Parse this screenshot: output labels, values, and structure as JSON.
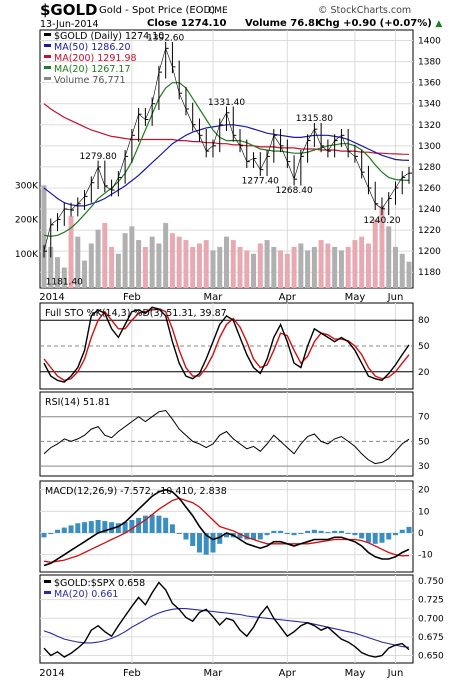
{
  "header": {
    "symbol": "$GOLD",
    "description": "Gold - Spot Price (EOD)",
    "exchange": "CME",
    "credit": "© StockCharts.com",
    "date": "13-Jun-2014",
    "close": "Close 1274.10",
    "volume": "Volume 76.8K",
    "change": "Chg +0.90 (+0.07%)",
    "change_arrow": "▲"
  },
  "colors": {
    "price_up": "#000000",
    "ma50": "#1a1aa6",
    "ma200": "#c8102e",
    "ma20": "#1e7d1e",
    "volume_up": "#b0b0b0",
    "volume_down": "#e7aab3",
    "k_line": "#000000",
    "d_line": "#d01010",
    "macd_hist": "#3b8fc0",
    "ratio_ma": "#2a2aa0"
  },
  "chart_data": [
    {
      "panel": "price",
      "type": "line",
      "title": "$GOLD (Daily) 1274.10",
      "x_tick_labels": [
        "2014",
        "Feb",
        "Mar",
        "Apr",
        "May",
        "Jun"
      ],
      "y_ticks": [
        1180,
        1200,
        1220,
        1240,
        1260,
        1280,
        1300,
        1320,
        1340,
        1360,
        1380,
        1400
      ],
      "ylim": [
        1165,
        1410
      ],
      "volume_ticks": [
        "300K",
        "200K",
        "100K"
      ],
      "grid": true,
      "legend": [
        {
          "key": "price",
          "label": "$GOLD (Daily) 1274.10"
        },
        {
          "key": "ma50",
          "label": "MA(50) 1286.20"
        },
        {
          "key": "ma200",
          "label": "MA(200) 1291.98"
        },
        {
          "key": "ma20",
          "label": "MA(20) 1267.17"
        },
        {
          "key": "volume",
          "label": "Volume 76,771"
        }
      ],
      "annotations": [
        {
          "label": "1181.40",
          "value": 1181.4
        },
        {
          "label": "1279.80",
          "value": 1279.8
        },
        {
          "label": "1392.60",
          "value": 1392.6
        },
        {
          "label": "1331.40",
          "value": 1331.4
        },
        {
          "label": "1277.40",
          "value": 1277.4
        },
        {
          "label": "1268.40",
          "value": 1268.4
        },
        {
          "label": "1315.80",
          "value": 1315.8
        },
        {
          "label": "1240.20",
          "value": 1240.2
        }
      ],
      "series": [
        {
          "name": "$GOLD (Daily)",
          "key": "price",
          "values": [
            1200,
            1225,
            1230,
            1240,
            1239,
            1245,
            1252,
            1265,
            1280,
            1262,
            1258,
            1270,
            1290,
            1310,
            1330,
            1325,
            1340,
            1370,
            1392.6,
            1375,
            1350,
            1335,
            1320,
            1310,
            1295,
            1300,
            1320,
            1331.4,
            1310,
            1300,
            1285,
            1288,
            1277.4,
            1290,
            1310,
            1300,
            1285,
            1268.4,
            1290,
            1305,
            1315.8,
            1300,
            1295,
            1305,
            1310,
            1295,
            1290,
            1275,
            1260,
            1245,
            1240.2,
            1250,
            1260,
            1270,
            1274.1
          ]
        },
        {
          "name": "MA(50)",
          "key": "ma50",
          "values": [
            1260,
            1255,
            1250,
            1246,
            1244,
            1243,
            1243,
            1245,
            1247,
            1250,
            1254,
            1258,
            1262,
            1267,
            1272,
            1278,
            1284,
            1290,
            1296,
            1302,
            1306,
            1310,
            1313,
            1315,
            1317,
            1318,
            1319,
            1320,
            1320,
            1319,
            1318,
            1316,
            1314,
            1312,
            1311,
            1310,
            1309,
            1308,
            1308,
            1309,
            1310,
            1310,
            1310,
            1309,
            1308,
            1306,
            1303,
            1300,
            1297,
            1294,
            1291,
            1289,
            1287,
            1286.5,
            1286.2
          ]
        },
        {
          "name": "MA(200)",
          "key": "ma200",
          "values": [
            1340,
            1335,
            1331,
            1327,
            1324,
            1321,
            1318,
            1315,
            1313,
            1311,
            1309,
            1308,
            1307,
            1306,
            1306,
            1306,
            1306,
            1306,
            1306,
            1306,
            1305,
            1305,
            1304,
            1304,
            1303,
            1303,
            1302,
            1302,
            1301,
            1301,
            1300,
            1300,
            1299,
            1299,
            1299,
            1298,
            1298,
            1298,
            1297,
            1297,
            1297,
            1296,
            1296,
            1296,
            1295,
            1295,
            1295,
            1294,
            1294,
            1293,
            1293,
            1292.5,
            1292.3,
            1292.1,
            1291.98
          ]
        },
        {
          "name": "MA(20)",
          "key": "ma20",
          "values": [
            1215,
            1214,
            1215,
            1218,
            1222,
            1228,
            1235,
            1242,
            1250,
            1255,
            1260,
            1266,
            1274,
            1285,
            1300,
            1315,
            1330,
            1345,
            1355,
            1360,
            1360,
            1355,
            1345,
            1335,
            1325,
            1315,
            1308,
            1305,
            1305,
            1305,
            1303,
            1300,
            1297,
            1296,
            1295,
            1295,
            1294,
            1293,
            1293,
            1294,
            1296,
            1298,
            1300,
            1301,
            1302,
            1302,
            1300,
            1296,
            1290,
            1282,
            1275,
            1270,
            1268,
            1267.5,
            1267.17
          ]
        },
        {
          "name": "Volume",
          "key": "volume",
          "values": [
            300,
            120,
            90,
            60,
            210,
            150,
            80,
            130,
            170,
            190,
            120,
            100,
            160,
            180,
            140,
            120,
            150,
            130,
            190,
            160,
            150,
            140,
            120,
            130,
            140,
            110,
            120,
            150,
            140,
            120,
            110,
            100,
            130,
            140,
            120,
            110,
            100,
            120,
            130,
            110,
            120,
            140,
            130,
            120,
            110,
            120,
            140,
            150,
            130,
            200,
            240,
            180,
            120,
            100,
            76.8
          ]
        }
      ]
    },
    {
      "panel": "stochastic",
      "type": "line",
      "title": "Full STO %K(14,3) %D(3) 51.31, 39.87",
      "y_ticks": [
        20,
        50,
        80
      ],
      "ylim": [
        0,
        100
      ],
      "series": [
        {
          "name": "%K",
          "key": "k_line",
          "values": [
            30,
            15,
            10,
            8,
            15,
            25,
            45,
            85,
            92,
            88,
            70,
            60,
            75,
            90,
            92,
            88,
            95,
            93,
            85,
            55,
            30,
            15,
            12,
            18,
            35,
            55,
            75,
            85,
            80,
            60,
            40,
            25,
            18,
            35,
            60,
            75,
            55,
            30,
            25,
            50,
            70,
            65,
            60,
            55,
            60,
            55,
            45,
            30,
            15,
            12,
            10,
            18,
            28,
            40,
            51.31
          ]
        },
        {
          "name": "%D",
          "key": "d_line",
          "values": [
            35,
            25,
            15,
            10,
            12,
            20,
            35,
            60,
            80,
            90,
            80,
            70,
            70,
            80,
            88,
            90,
            92,
            93,
            90,
            70,
            45,
            25,
            15,
            15,
            25,
            40,
            60,
            75,
            82,
            72,
            55,
            35,
            25,
            28,
            45,
            65,
            62,
            45,
            30,
            38,
            55,
            65,
            63,
            58,
            58,
            56,
            50,
            40,
            25,
            15,
            12,
            14,
            20,
            30,
            39.87
          ]
        }
      ]
    },
    {
      "panel": "rsi",
      "type": "line",
      "title": "RSI(14) 51.81",
      "y_ticks": [
        30,
        50,
        70
      ],
      "ylim": [
        22,
        90
      ],
      "series": [
        {
          "name": "RSI(14)",
          "key": "rsi",
          "values": [
            40,
            45,
            48,
            52,
            50,
            52,
            55,
            60,
            62,
            55,
            53,
            58,
            62,
            66,
            70,
            66,
            70,
            74,
            75,
            68,
            60,
            55,
            50,
            48,
            45,
            48,
            55,
            58,
            52,
            48,
            44,
            46,
            42,
            48,
            55,
            50,
            45,
            40,
            48,
            54,
            56,
            50,
            48,
            52,
            54,
            50,
            46,
            40,
            35,
            32,
            33,
            36,
            42,
            48,
            51.81
          ]
        }
      ]
    },
    {
      "panel": "macd",
      "type": "line",
      "title": "MACD(12,26,9) -7.572, -10.410, 2.838",
      "y_ticks": [
        -10,
        0,
        10,
        20
      ],
      "ylim": [
        -18,
        24
      ],
      "series": [
        {
          "name": "MACD",
          "key": "macd",
          "values": [
            -15,
            -14,
            -12,
            -10,
            -8,
            -6,
            -4,
            -2,
            0,
            1,
            2,
            3,
            5,
            8,
            11,
            14,
            17,
            19,
            20,
            19,
            16,
            12,
            8,
            3,
            -1,
            -3,
            -2,
            0,
            -1,
            -3,
            -5,
            -6,
            -7,
            -6,
            -4,
            -4,
            -5,
            -6,
            -5,
            -4,
            -3,
            -3,
            -3,
            -2,
            -2,
            -3,
            -4,
            -6,
            -9,
            -11,
            -12,
            -12,
            -11,
            -9,
            -7.572
          ]
        },
        {
          "name": "Signal",
          "key": "signal",
          "values": [
            -13,
            -13.5,
            -13,
            -12.5,
            -11.5,
            -10.5,
            -9,
            -7.5,
            -6,
            -4.5,
            -3,
            -1.5,
            0,
            2,
            4,
            6,
            8.5,
            11,
            13,
            15,
            16,
            15,
            14,
            12,
            9,
            6,
            3,
            2,
            1,
            -0.5,
            -2,
            -3,
            -4,
            -5,
            -5,
            -5,
            -5,
            -5,
            -5,
            -5,
            -4.5,
            -4,
            -3.5,
            -3,
            -3,
            -3,
            -3,
            -3.5,
            -4.5,
            -6,
            -7.5,
            -9,
            -10,
            -10.5,
            -10.41
          ]
        },
        {
          "name": "Histogram",
          "key": "hist",
          "values": [
            -2,
            -0.5,
            1.5,
            2.5,
            3.5,
            4.5,
            5,
            5.5,
            6,
            5.5,
            5,
            4.5,
            5,
            6,
            7,
            8,
            8.5,
            8,
            7,
            4,
            0,
            -3,
            -6,
            -9,
            -10,
            -9,
            -5,
            -2,
            -2,
            -2.5,
            -3,
            -3,
            -3,
            -1,
            1,
            1,
            0,
            -1,
            0,
            1,
            1.5,
            1,
            0.5,
            1,
            1,
            0,
            -1,
            -2.5,
            -4.5,
            -5,
            -4.5,
            -3,
            -1,
            1.5,
            2.838
          ]
        }
      ]
    },
    {
      "panel": "ratio",
      "type": "line",
      "title": "$GOLD:$SPX 0.658",
      "y_ticks": [
        0.65,
        0.675,
        0.7,
        0.725,
        0.75
      ],
      "y_tick_labels": [
        "0.650",
        "0.675",
        "0.700",
        "0.725",
        "0.750"
      ],
      "ylim": [
        0.64,
        0.758
      ],
      "x_tick_labels": [
        "2014",
        "Feb",
        "Mar",
        "Apr",
        "May",
        "Jun"
      ],
      "legend": [
        {
          "key": "ratio",
          "label": "$GOLD:$SPX 0.658"
        },
        {
          "key": "ratio_ma",
          "label": "MA(20) 0.661"
        }
      ],
      "series": [
        {
          "name": "$GOLD:$SPX",
          "key": "ratio",
          "values": [
            0.66,
            0.65,
            0.655,
            0.648,
            0.653,
            0.66,
            0.668,
            0.684,
            0.69,
            0.682,
            0.676,
            0.69,
            0.703,
            0.716,
            0.728,
            0.718,
            0.734,
            0.748,
            0.738,
            0.72,
            0.712,
            0.701,
            0.696,
            0.708,
            0.712,
            0.702,
            0.691,
            0.7,
            0.697,
            0.684,
            0.676,
            0.688,
            0.705,
            0.716,
            0.7,
            0.688,
            0.676,
            0.682,
            0.69,
            0.694,
            0.69,
            0.684,
            0.688,
            0.68,
            0.672,
            0.668,
            0.662,
            0.654,
            0.65,
            0.648,
            0.65,
            0.66,
            0.664,
            0.666,
            0.658
          ]
        },
        {
          "name": "MA(20)",
          "key": "ratio_ma",
          "values": [
            0.683,
            0.68,
            0.676,
            0.672,
            0.67,
            0.668,
            0.667,
            0.667,
            0.668,
            0.67,
            0.673,
            0.677,
            0.682,
            0.688,
            0.693,
            0.698,
            0.703,
            0.707,
            0.71,
            0.712,
            0.713,
            0.713,
            0.712,
            0.711,
            0.71,
            0.709,
            0.708,
            0.707,
            0.706,
            0.705,
            0.703,
            0.702,
            0.701,
            0.7,
            0.699,
            0.698,
            0.697,
            0.696,
            0.695,
            0.694,
            0.692,
            0.69,
            0.688,
            0.686,
            0.684,
            0.682,
            0.68,
            0.677,
            0.674,
            0.671,
            0.668,
            0.666,
            0.664,
            0.662,
            0.661
          ]
        }
      ]
    }
  ]
}
